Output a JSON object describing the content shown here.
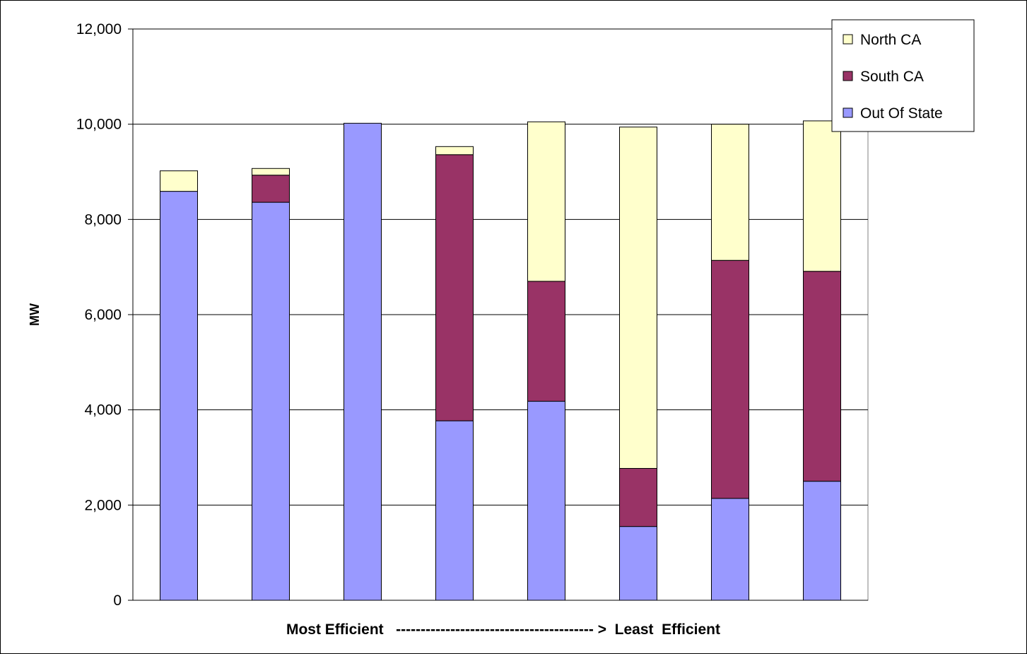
{
  "chart_data": {
    "type": "bar",
    "stacked": true,
    "title": "",
    "ylabel": "MW",
    "xlabel": "Most Efficient   ---------------------------------------- >  Least  Efficient",
    "ylim": [
      0,
      12000
    ],
    "yticks": [
      0,
      2000,
      4000,
      6000,
      8000,
      10000,
      12000
    ],
    "ytick_labels": [
      "0",
      "2,000",
      "4,000",
      "6,000",
      "8,000",
      "10,000",
      "12,000"
    ],
    "grid": true,
    "legend_position": "top-right",
    "categories": [
      "",
      "",
      "",
      "",
      "",
      "",
      "",
      ""
    ],
    "series": [
      {
        "name": "Out Of State",
        "color": "#9999ff",
        "values": [
          8590,
          8360,
          10020,
          3770,
          4180,
          1550,
          2140,
          2500
        ]
      },
      {
        "name": "South CA",
        "color": "#993366",
        "values": [
          0,
          570,
          0,
          5590,
          2520,
          1220,
          5000,
          4410
        ]
      },
      {
        "name": "North CA",
        "color": "#ffffcc",
        "values": [
          430,
          140,
          0,
          170,
          3350,
          7170,
          2860,
          3160
        ]
      }
    ],
    "legend": [
      {
        "name": "North CA",
        "color": "#ffffcc"
      },
      {
        "name": "South CA",
        "color": "#993366"
      },
      {
        "name": "Out Of State",
        "color": "#9999ff"
      }
    ]
  }
}
